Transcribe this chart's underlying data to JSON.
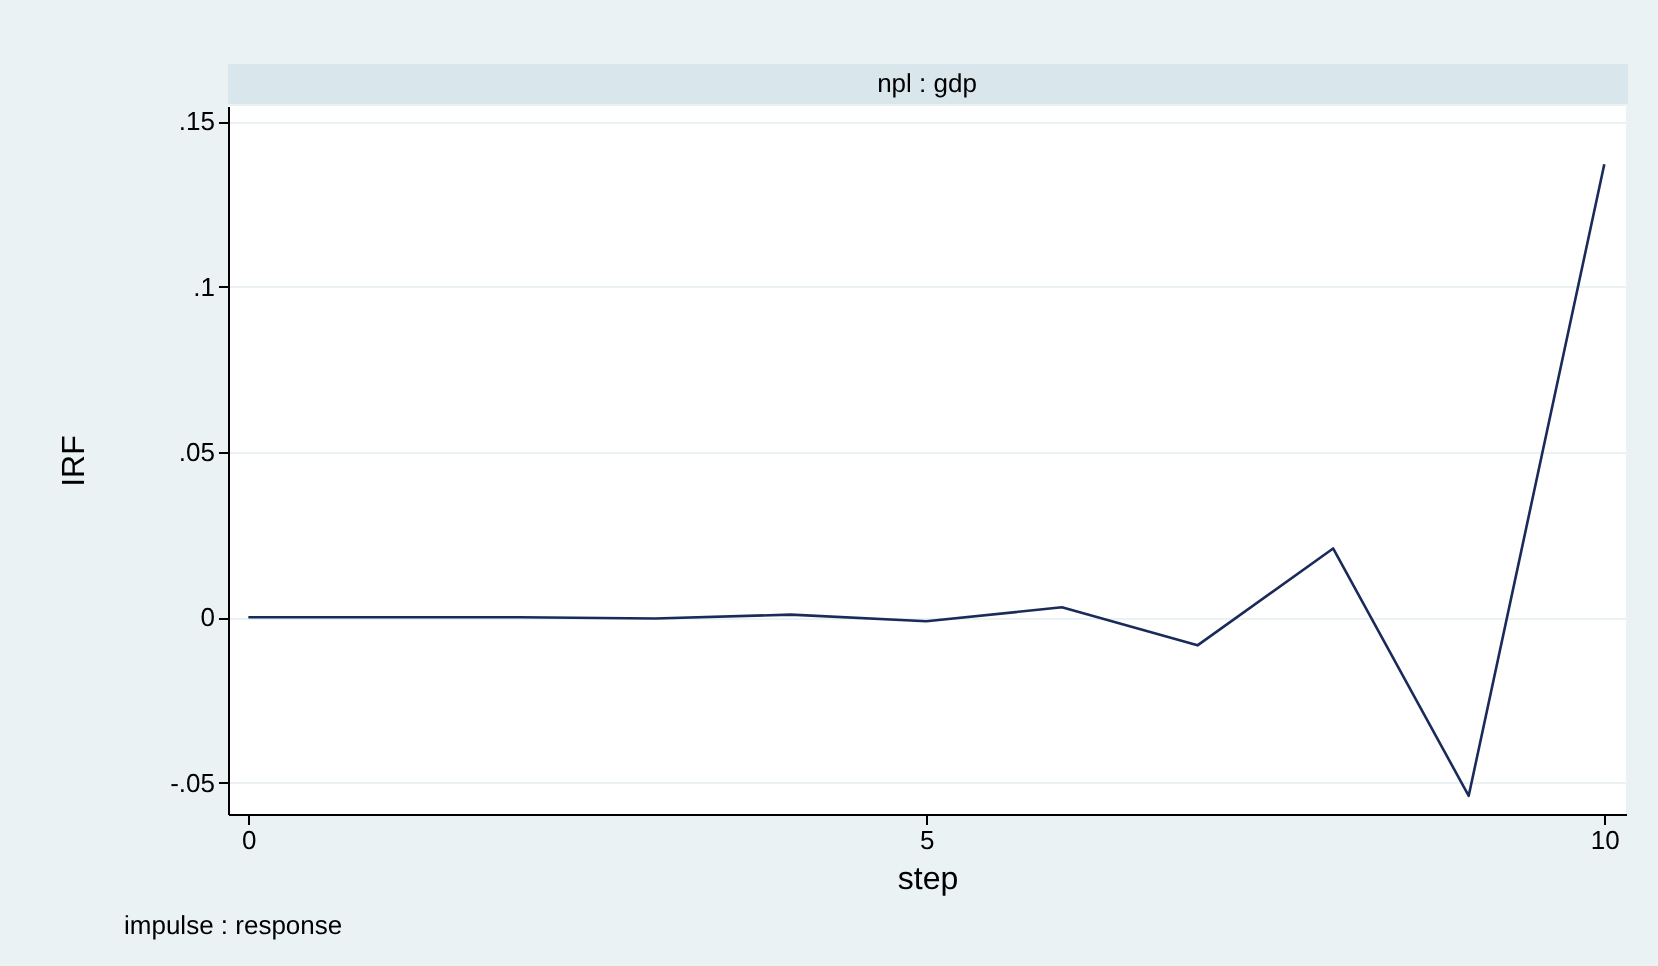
{
  "chart_data": {
    "type": "line",
    "title": "npl : gdp",
    "xlabel": "step",
    "ylabel": "IRF",
    "annotations": [
      "impulse : response"
    ],
    "x": [
      0,
      1,
      2,
      3,
      4,
      5,
      6,
      7,
      8,
      9,
      10
    ],
    "series": [
      {
        "color": "#1a2b5a",
        "values": [
          0,
          0,
          0,
          -0.0004,
          0.0008,
          -0.0012,
          0.003,
          -0.0085,
          0.0208,
          -0.054,
          0.137
        ]
      }
    ],
    "xlim": [
      -0.15,
      10.16
    ],
    "xticks": [
      0,
      5,
      10
    ],
    "ylim": [
      -0.0595,
      0.1546
    ],
    "yticks": [
      {
        "value": -0.05,
        "label": "-.05"
      },
      0,
      {
        "value": 0.05,
        "label": ".05"
      },
      {
        "value": 0.1,
        "label": ".1"
      },
      {
        "value": 0.15,
        "label": ".15"
      }
    ],
    "grid": "y",
    "legend": false,
    "marker": "none",
    "line_style": "solid"
  }
}
